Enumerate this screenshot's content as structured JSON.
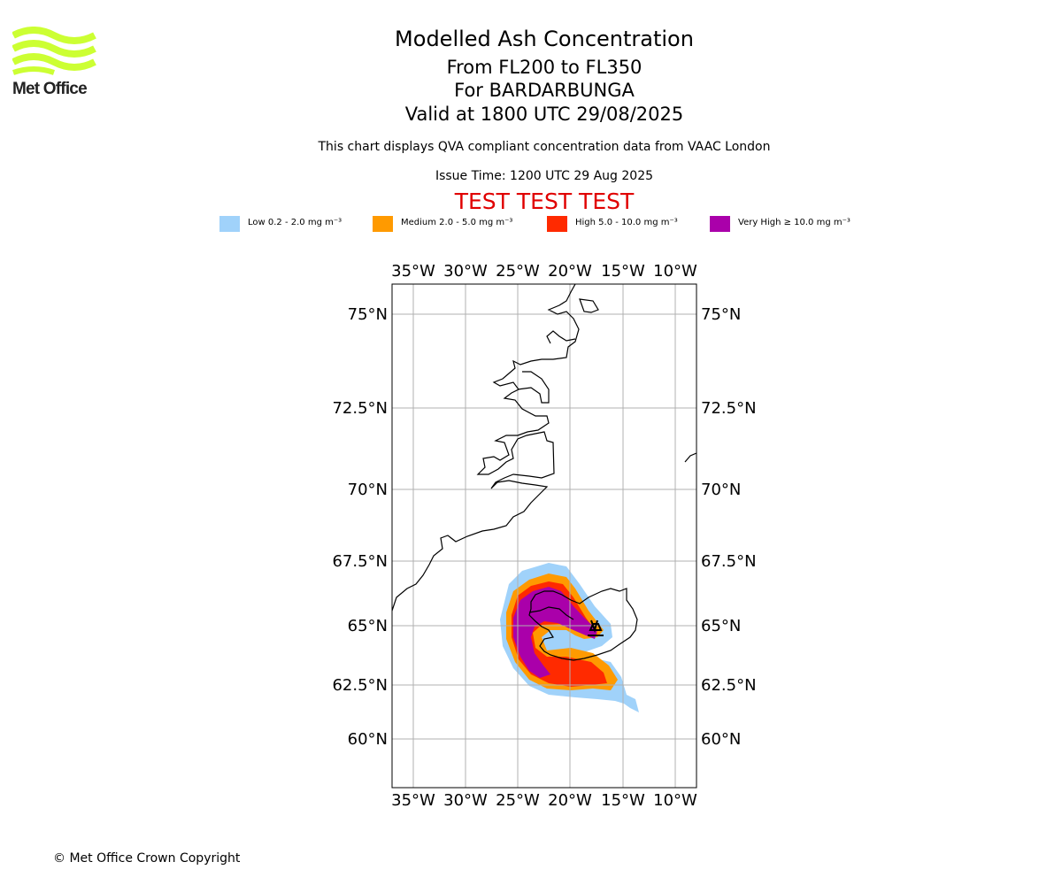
{
  "logo": {
    "text": "Met Office",
    "color": "#ccff33"
  },
  "title": {
    "line1": "Modelled Ash Concentration",
    "line2": "From FL200 to FL350",
    "line3": "For BARDARBUNGA",
    "line4": "Valid at 1800 UTC 29/08/2025"
  },
  "description": "This chart displays QVA compliant concentration data from VAAC London",
  "issue_time": "Issue Time: 1200 UTC 29 Aug 2025",
  "test_banner": "TEST TEST TEST",
  "legend": [
    {
      "label": "Low 0.2 - 2.0 mg m⁻³",
      "color": "#a0d2fa"
    },
    {
      "label": "Medium 2.0 - 5.0 mg m⁻³",
      "color": "#ff9a00"
    },
    {
      "label": "High 5.0 - 10.0 mg m⁻³",
      "color": "#ff2a00"
    },
    {
      "label": "Very High ≥ 10.0 mg m⁻³",
      "color": "#aa00aa"
    }
  ],
  "map": {
    "lon_labels": [
      "35°W",
      "30°W",
      "25°W",
      "20°W",
      "15°W",
      "10°W"
    ],
    "lat_labels": [
      "75°N",
      "72.5°N",
      "70°N",
      "67.5°N",
      "65°N",
      "62.5°N",
      "60°N"
    ],
    "gridlines": true,
    "volcano_marker": "triangle"
  },
  "copyright": "© Met Office Crown Copyright"
}
